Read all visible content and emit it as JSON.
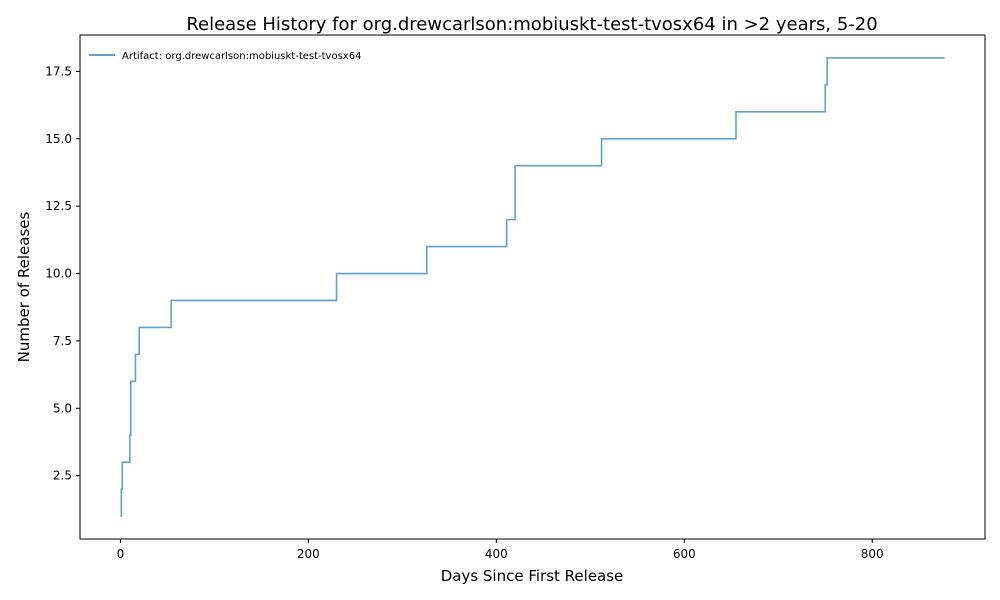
{
  "chart_data": {
    "type": "line",
    "title": "Release History for org.drewcarlson:mobiuskt-test-tvosx64 in >2 years, 5-20",
    "xlabel": "Days Since First Release",
    "ylabel": "Number of Releases",
    "xlim": [
      -43,
      920
    ],
    "ylim": [
      0.15,
      18.85
    ],
    "xticks": [
      0,
      200,
      400,
      600,
      800
    ],
    "xtick_labels": [
      "0",
      "200",
      "400",
      "600",
      "800"
    ],
    "yticks": [
      2.5,
      5.0,
      7.5,
      10.0,
      12.5,
      15.0,
      17.5
    ],
    "ytick_labels": [
      "2.5",
      "5.0",
      "7.5",
      "10.0",
      "12.5",
      "15.0",
      "17.5"
    ],
    "grid": false,
    "legend_position": "top-left",
    "step": "post",
    "series": [
      {
        "name": "Artifact: org.drewcarlson:mobiuskt-test-tvosx64",
        "color": "#5fa2ce",
        "x": [
          0,
          1,
          2,
          10,
          11,
          16,
          20,
          54,
          230,
          326,
          411,
          420,
          512,
          655,
          750,
          752,
          877
        ],
        "y": [
          1,
          2,
          3,
          4,
          6,
          7,
          8,
          9,
          10,
          11,
          12,
          14,
          15,
          16,
          17,
          18,
          18
        ]
      }
    ]
  }
}
